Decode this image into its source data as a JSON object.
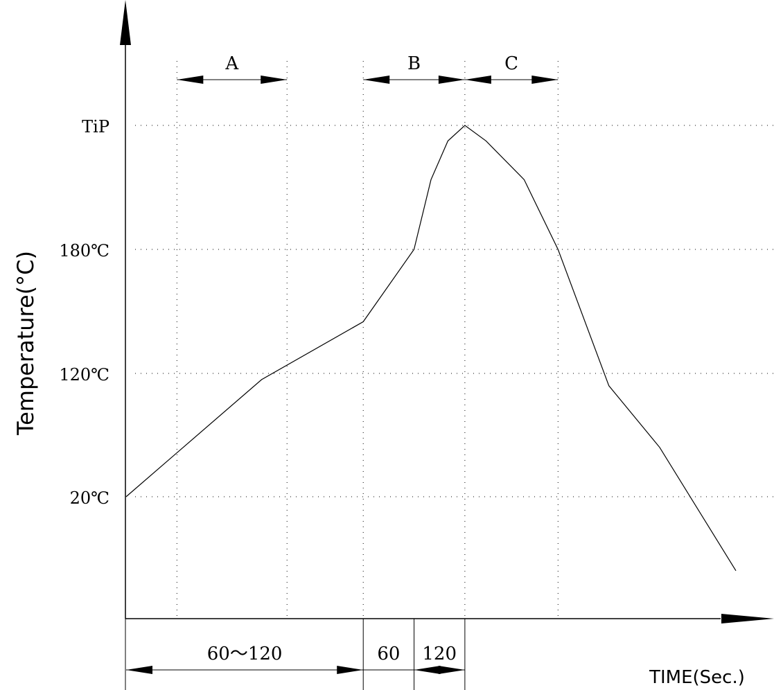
{
  "chart_data": {
    "type": "line",
    "ylabel": "Temperature(°C)",
    "xlabel": "TIME(Sec.)",
    "y_ticks": [
      {
        "label": "20℃",
        "value": 20
      },
      {
        "label": "120℃",
        "value": 120
      },
      {
        "label": "180℃",
        "value": 180
      },
      {
        "label": "TiP",
        "value": 260
      }
    ],
    "zones": [
      {
        "label": "A",
        "from": 60,
        "to": 190
      },
      {
        "label": "B",
        "from": 280,
        "to": 400
      },
      {
        "label": "C",
        "from": 400,
        "to": 510
      }
    ],
    "time_spans": [
      {
        "label": "60～120",
        "from": 0,
        "to": 280
      },
      {
        "label": "60",
        "from": 280,
        "to": 340
      },
      {
        "label": "120",
        "from": 340,
        "to": 400
      }
    ],
    "series": [
      {
        "x": [
          0,
          160,
          280,
          340,
          360,
          380,
          400,
          425,
          470,
          510,
          570,
          630,
          720
        ],
        "y": [
          20,
          115,
          145,
          180,
          225,
          250,
          260,
          250,
          225,
          180,
          110,
          60,
          -40
        ]
      }
    ]
  }
}
